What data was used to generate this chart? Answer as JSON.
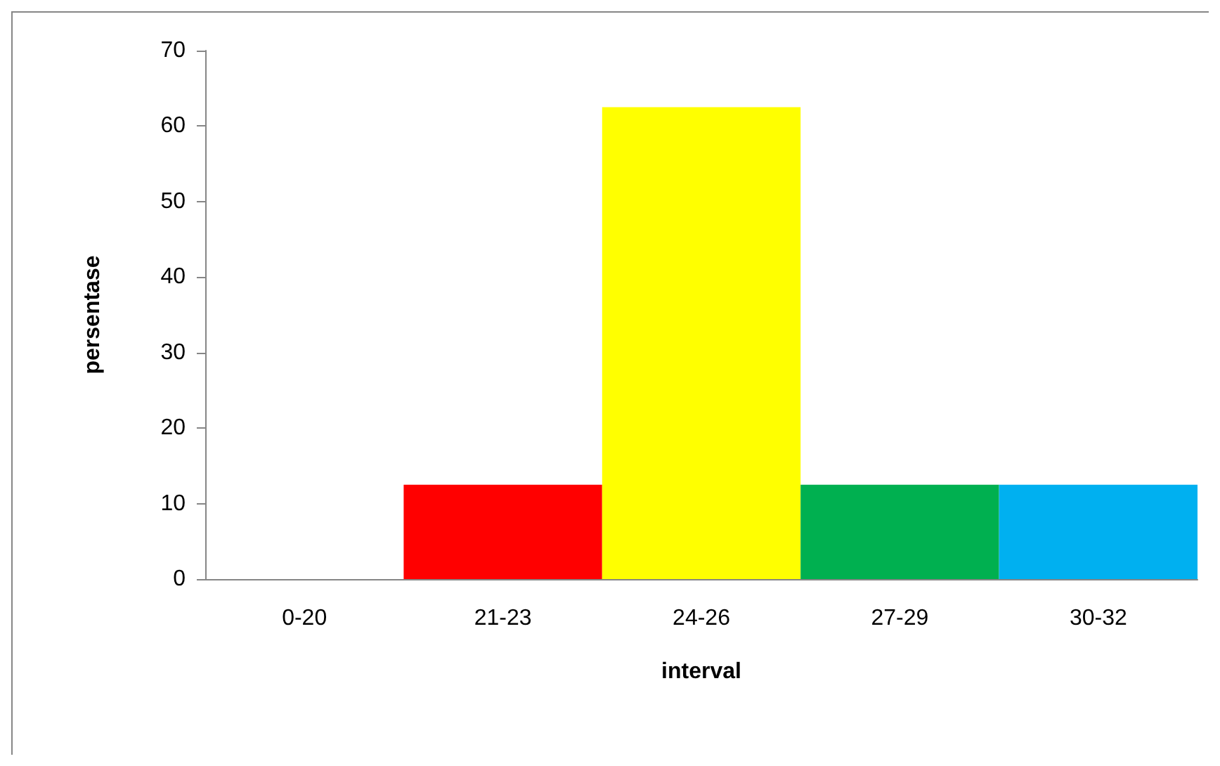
{
  "chart_data": {
    "type": "bar",
    "xlabel": "interval",
    "ylabel": "persentase",
    "categories": [
      "0-20",
      "21-23",
      "24-26",
      "27-29",
      "30-32"
    ],
    "values": [
      0,
      12.5,
      62.5,
      12.5,
      12.5
    ],
    "colors": [
      "#ff0000",
      "#ff0000",
      "#ffff00",
      "#00b050",
      "#00b0f0"
    ],
    "ylim": [
      0,
      70
    ],
    "yticks": [
      0,
      10,
      20,
      30,
      40,
      50,
      60,
      70
    ],
    "grid": false
  }
}
